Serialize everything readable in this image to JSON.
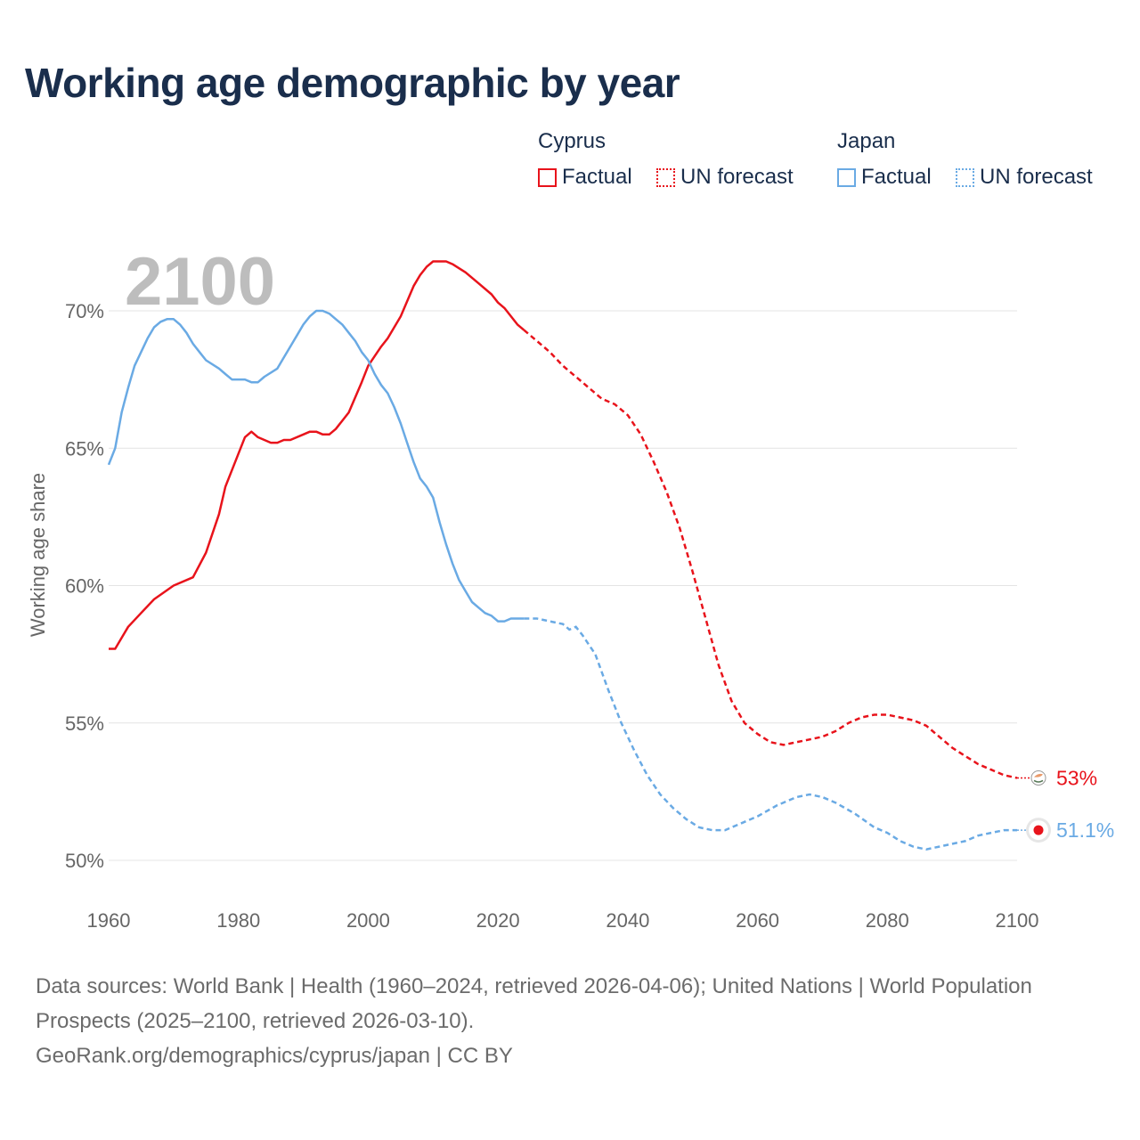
{
  "title": "Working age demographic by year",
  "legend": {
    "groups": [
      {
        "name": "Cyprus",
        "factual_label": "Factual",
        "forecast_label": "UN forecast",
        "color": "#e8131b"
      },
      {
        "name": "Japan",
        "factual_label": "Factual",
        "forecast_label": "UN forecast",
        "color": "#6aaae4"
      }
    ]
  },
  "footer": {
    "sources": "Data sources: World Bank | Health (1960–2024, retrieved 2026-04-06); United Nations | World Population Prospects (2025–2100, retrieved 2026-03-10).",
    "attribution": "GeoRank.org/demographics/cyprus/japan | CC BY"
  },
  "chart_data": {
    "type": "line",
    "title": "Working age demographic by year",
    "year_label": "2100",
    "xlabel": "",
    "ylabel": "Working age share",
    "xlim": [
      1960,
      2100
    ],
    "ylim": [
      49,
      72.5
    ],
    "x_ticks": [
      1960,
      1980,
      2000,
      2020,
      2040,
      2060,
      2080,
      2100
    ],
    "y_ticks": [
      50,
      55,
      60,
      65,
      70
    ],
    "y_tick_labels": [
      "50%",
      "55%",
      "60%",
      "65%",
      "70%"
    ],
    "factual_end_year": 2024,
    "series": [
      {
        "name": "Cyprus",
        "color": "#e8131b",
        "end_label": "53%",
        "points": [
          [
            1960,
            57.7
          ],
          [
            1961,
            57.7
          ],
          [
            1962,
            58.1
          ],
          [
            1963,
            58.5
          ],
          [
            1965,
            59.0
          ],
          [
            1967,
            59.5
          ],
          [
            1970,
            60.0
          ],
          [
            1973,
            60.3
          ],
          [
            1975,
            61.2
          ],
          [
            1977,
            62.6
          ],
          [
            1978,
            63.6
          ],
          [
            1980,
            64.8
          ],
          [
            1981,
            65.4
          ],
          [
            1982,
            65.6
          ],
          [
            1983,
            65.4
          ],
          [
            1985,
            65.2
          ],
          [
            1986,
            65.2
          ],
          [
            1987,
            65.3
          ],
          [
            1988,
            65.3
          ],
          [
            1990,
            65.5
          ],
          [
            1991,
            65.6
          ],
          [
            1992,
            65.6
          ],
          [
            1993,
            65.5
          ],
          [
            1994,
            65.5
          ],
          [
            1995,
            65.7
          ],
          [
            1997,
            66.3
          ],
          [
            1999,
            67.4
          ],
          [
            2000,
            68.0
          ],
          [
            2002,
            68.7
          ],
          [
            2003,
            69.0
          ],
          [
            2005,
            69.8
          ],
          [
            2007,
            70.9
          ],
          [
            2008,
            71.3
          ],
          [
            2009,
            71.6
          ],
          [
            2010,
            71.8
          ],
          [
            2011,
            71.8
          ],
          [
            2012,
            71.8
          ],
          [
            2013,
            71.7
          ],
          [
            2015,
            71.4
          ],
          [
            2017,
            71.0
          ],
          [
            2019,
            70.6
          ],
          [
            2020,
            70.3
          ],
          [
            2021,
            70.1
          ],
          [
            2023,
            69.5
          ],
          [
            2024,
            69.3
          ],
          [
            2025,
            69.1
          ],
          [
            2026,
            68.9
          ],
          [
            2028,
            68.5
          ],
          [
            2030,
            68.0
          ],
          [
            2032,
            67.6
          ],
          [
            2034,
            67.2
          ],
          [
            2036,
            66.8
          ],
          [
            2038,
            66.6
          ],
          [
            2040,
            66.2
          ],
          [
            2042,
            65.5
          ],
          [
            2044,
            64.5
          ],
          [
            2046,
            63.4
          ],
          [
            2048,
            62.1
          ],
          [
            2050,
            60.5
          ],
          [
            2052,
            58.8
          ],
          [
            2054,
            57.1
          ],
          [
            2056,
            55.8
          ],
          [
            2058,
            55.0
          ],
          [
            2060,
            54.6
          ],
          [
            2062,
            54.3
          ],
          [
            2064,
            54.2
          ],
          [
            2066,
            54.3
          ],
          [
            2068,
            54.4
          ],
          [
            2070,
            54.5
          ],
          [
            2072,
            54.7
          ],
          [
            2074,
            55.0
          ],
          [
            2076,
            55.2
          ],
          [
            2078,
            55.3
          ],
          [
            2080,
            55.3
          ],
          [
            2082,
            55.2
          ],
          [
            2084,
            55.1
          ],
          [
            2086,
            54.9
          ],
          [
            2088,
            54.5
          ],
          [
            2090,
            54.1
          ],
          [
            2092,
            53.8
          ],
          [
            2094,
            53.5
          ],
          [
            2096,
            53.3
          ],
          [
            2098,
            53.1
          ],
          [
            2100,
            53.0
          ]
        ]
      },
      {
        "name": "Japan",
        "color": "#6aaae4",
        "end_label": "51.1%",
        "points": [
          [
            1960,
            64.4
          ],
          [
            1961,
            65.0
          ],
          [
            1962,
            66.3
          ],
          [
            1963,
            67.2
          ],
          [
            1964,
            68.0
          ],
          [
            1965,
            68.5
          ],
          [
            1966,
            69.0
          ],
          [
            1967,
            69.4
          ],
          [
            1968,
            69.6
          ],
          [
            1969,
            69.7
          ],
          [
            1970,
            69.7
          ],
          [
            1971,
            69.5
          ],
          [
            1972,
            69.2
          ],
          [
            1973,
            68.8
          ],
          [
            1974,
            68.5
          ],
          [
            1975,
            68.2
          ],
          [
            1977,
            67.9
          ],
          [
            1978,
            67.7
          ],
          [
            1979,
            67.5
          ],
          [
            1980,
            67.5
          ],
          [
            1981,
            67.5
          ],
          [
            1982,
            67.4
          ],
          [
            1983,
            67.4
          ],
          [
            1984,
            67.6
          ],
          [
            1986,
            67.9
          ],
          [
            1987,
            68.3
          ],
          [
            1988,
            68.7
          ],
          [
            1989,
            69.1
          ],
          [
            1990,
            69.5
          ],
          [
            1991,
            69.8
          ],
          [
            1992,
            70.0
          ],
          [
            1993,
            70.0
          ],
          [
            1994,
            69.9
          ],
          [
            1995,
            69.7
          ],
          [
            1996,
            69.5
          ],
          [
            1997,
            69.2
          ],
          [
            1998,
            68.9
          ],
          [
            1999,
            68.5
          ],
          [
            2000,
            68.2
          ],
          [
            2001,
            67.7
          ],
          [
            2002,
            67.3
          ],
          [
            2003,
            67.0
          ],
          [
            2004,
            66.5
          ],
          [
            2005,
            65.9
          ],
          [
            2006,
            65.2
          ],
          [
            2007,
            64.5
          ],
          [
            2008,
            63.9
          ],
          [
            2009,
            63.6
          ],
          [
            2010,
            63.2
          ],
          [
            2011,
            62.3
          ],
          [
            2012,
            61.5
          ],
          [
            2013,
            60.8
          ],
          [
            2014,
            60.2
          ],
          [
            2015,
            59.8
          ],
          [
            2016,
            59.4
          ],
          [
            2017,
            59.2
          ],
          [
            2018,
            59.0
          ],
          [
            2019,
            58.9
          ],
          [
            2020,
            58.7
          ],
          [
            2021,
            58.7
          ],
          [
            2022,
            58.8
          ],
          [
            2024,
            58.8
          ],
          [
            2026,
            58.8
          ],
          [
            2028,
            58.7
          ],
          [
            2030,
            58.6
          ],
          [
            2031,
            58.4
          ],
          [
            2032,
            58.5
          ],
          [
            2033,
            58.2
          ],
          [
            2035,
            57.5
          ],
          [
            2037,
            56.2
          ],
          [
            2039,
            55.0
          ],
          [
            2041,
            54.0
          ],
          [
            2043,
            53.1
          ],
          [
            2045,
            52.4
          ],
          [
            2047,
            51.9
          ],
          [
            2049,
            51.5
          ],
          [
            2051,
            51.2
          ],
          [
            2053,
            51.1
          ],
          [
            2055,
            51.1
          ],
          [
            2057,
            51.3
          ],
          [
            2060,
            51.6
          ],
          [
            2063,
            52.0
          ],
          [
            2066,
            52.3
          ],
          [
            2068,
            52.4
          ],
          [
            2070,
            52.3
          ],
          [
            2072,
            52.1
          ],
          [
            2075,
            51.7
          ],
          [
            2078,
            51.2
          ],
          [
            2080,
            51.0
          ],
          [
            2082,
            50.7
          ],
          [
            2084,
            50.5
          ],
          [
            2086,
            50.4
          ],
          [
            2088,
            50.5
          ],
          [
            2090,
            50.6
          ],
          [
            2092,
            50.7
          ],
          [
            2094,
            50.9
          ],
          [
            2096,
            51.0
          ],
          [
            2098,
            51.1
          ],
          [
            2100,
            51.1
          ]
        ]
      }
    ]
  }
}
